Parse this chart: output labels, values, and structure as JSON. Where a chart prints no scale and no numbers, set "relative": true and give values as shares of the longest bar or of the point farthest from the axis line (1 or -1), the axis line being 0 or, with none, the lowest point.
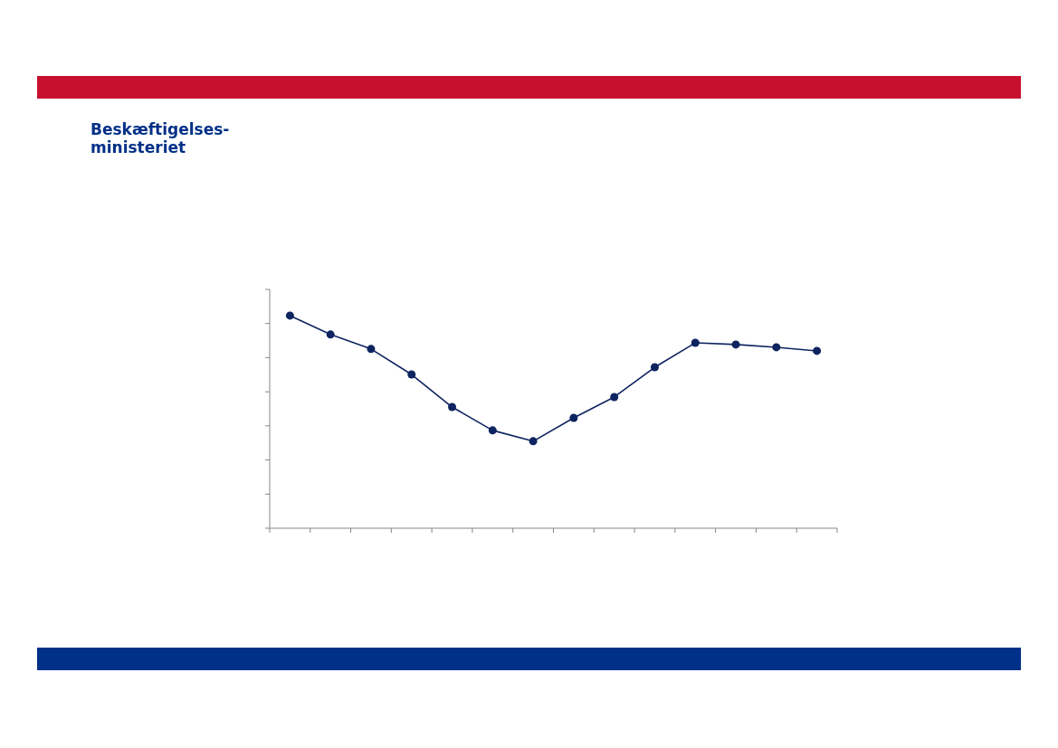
{
  "chart_data": {
    "type": "line",
    "relative": true,
    "marker": "circle",
    "line_style": "solid",
    "grid": false,
    "categories": [
      null,
      null,
      null,
      null,
      null,
      null,
      null,
      null,
      null,
      null,
      null,
      null,
      null,
      null
    ],
    "series": [
      {
        "color": "#0e2460",
        "values": [
          1,
          0.911,
          0.843,
          0.723,
          0.57,
          0.46,
          0.409,
          0.519,
          0.617,
          0.757,
          0.872,
          0.864,
          0.851,
          0.834
        ]
      }
    ],
    "annotations": [
      "Beskæftigelses-ministeriet"
    ]
  }
}
